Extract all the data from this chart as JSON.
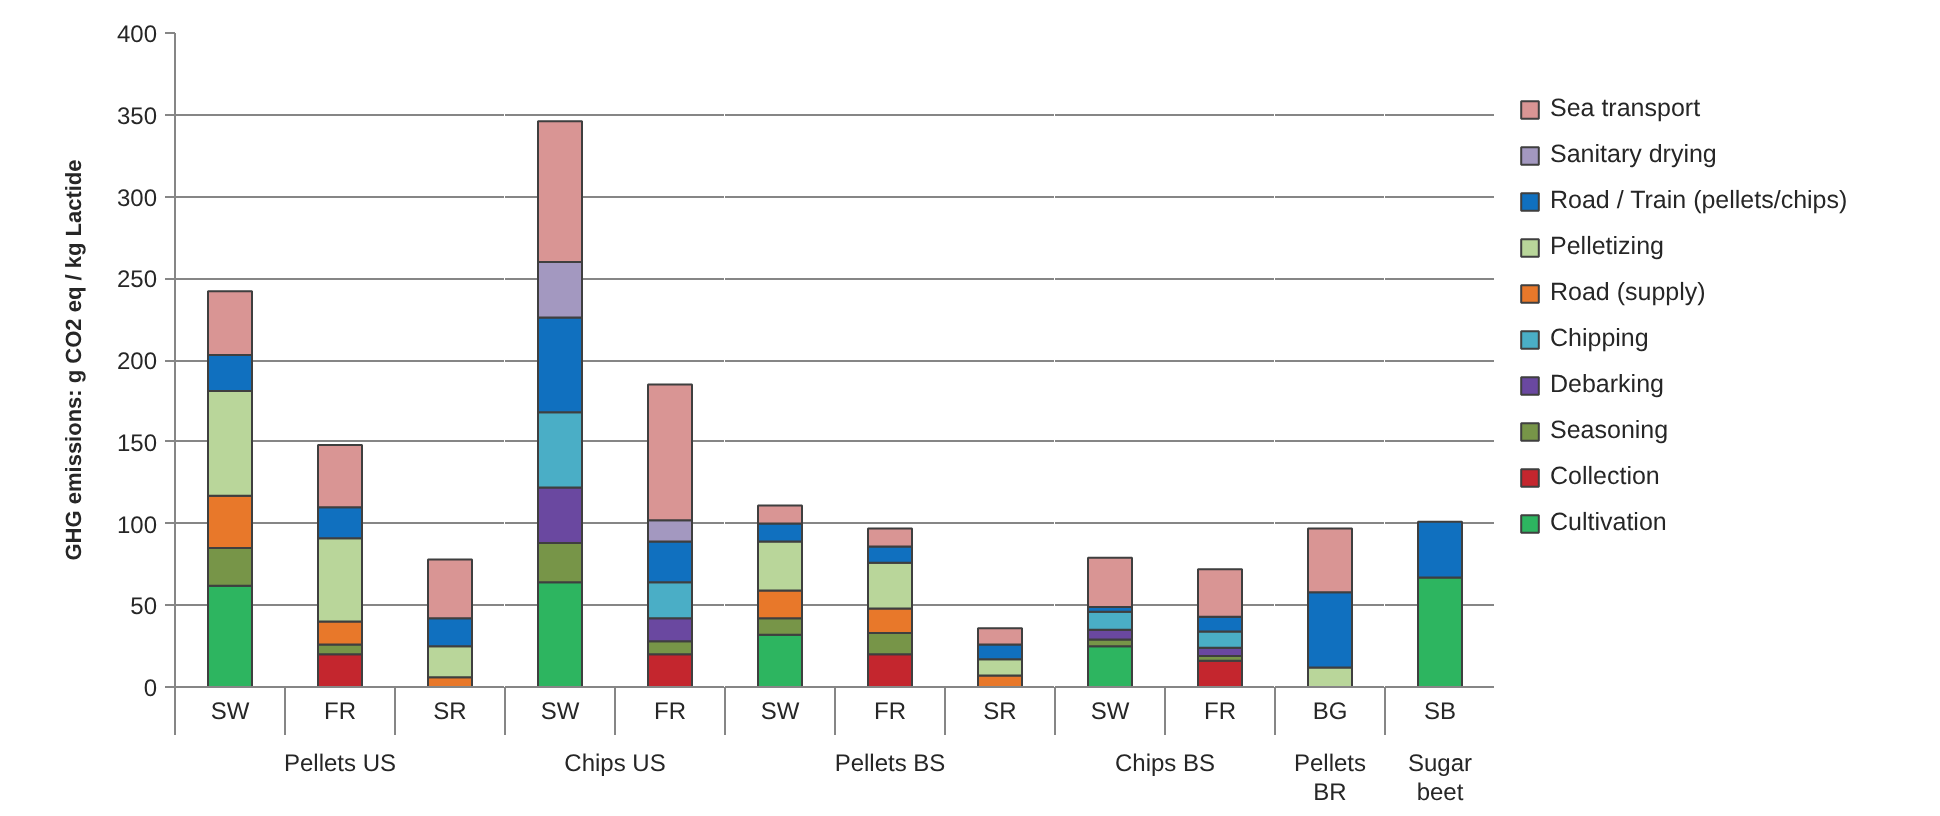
{
  "chart_data": [
    {
      "type": "bar",
      "stacked": true,
      "xlabel": "Pellets US",
      "ylabel": "GHG emissions: g CO2 eq / kg Lactide",
      "categories": [
        "SW",
        "FR",
        "SR"
      ],
      "ylim": [
        0,
        400
      ],
      "yticks": [
        0,
        50,
        100,
        150,
        200,
        250,
        300,
        350,
        400
      ],
      "grid": "y",
      "series": [
        {
          "color": "#2db560",
          "values": [
            62,
            null,
            null
          ]
        },
        {
          "color": "#c4262e",
          "values": [
            null,
            20,
            null
          ]
        },
        {
          "color": "#779548",
          "values": [
            23,
            6,
            null
          ]
        },
        {
          "color": "#e8782a",
          "values": [
            32,
            14,
            6
          ]
        },
        {
          "color": "#b9d69a",
          "values": [
            64,
            51,
            19
          ]
        },
        {
          "color": "#1070bf",
          "values": [
            22,
            19,
            17
          ]
        },
        {
          "color": "#d99594",
          "values": [
            39,
            38,
            36
          ]
        }
      ]
    },
    {
      "type": "bar",
      "stacked": true,
      "xlabel": "Chips US",
      "categories": [
        "SW",
        "FR"
      ],
      "ylim": [
        0,
        400
      ],
      "yticks": [
        0,
        50,
        100,
        150,
        200,
        250,
        300,
        350,
        400
      ],
      "grid": "y",
      "tick_labels": "x",
      "series": [
        {
          "color": "#2db560",
          "values": [
            64,
            null
          ]
        },
        {
          "color": "#c4262e",
          "values": [
            null,
            20
          ]
        },
        {
          "color": "#779548",
          "values": [
            24,
            8
          ]
        },
        {
          "color": "#6a48a0",
          "values": [
            34,
            14
          ]
        },
        {
          "color": "#4aaec6",
          "values": [
            46,
            22
          ]
        },
        {
          "color": "#1070bf",
          "values": [
            58,
            25
          ]
        },
        {
          "color": "#a398c0",
          "values": [
            34,
            13
          ]
        },
        {
          "color": "#d99594",
          "values": [
            86,
            83
          ]
        }
      ]
    },
    {
      "type": "bar",
      "stacked": true,
      "xlabel": "Pellets BS",
      "categories": [
        "SW",
        "FR",
        "SR"
      ],
      "ylim": [
        0,
        400
      ],
      "yticks": [
        0,
        50,
        100,
        150,
        200,
        250,
        300,
        350,
        400
      ],
      "grid": "y",
      "tick_labels": "x",
      "series": [
        {
          "color": "#2db560",
          "values": [
            32,
            null,
            null
          ]
        },
        {
          "color": "#c4262e",
          "values": [
            null,
            20,
            null
          ]
        },
        {
          "color": "#779548",
          "values": [
            10,
            13,
            null
          ]
        },
        {
          "color": "#e8782a",
          "values": [
            17,
            15,
            7
          ]
        },
        {
          "color": "#b9d69a",
          "values": [
            30,
            28,
            10
          ]
        },
        {
          "color": "#1070bf",
          "values": [
            11,
            10,
            9
          ]
        },
        {
          "color": "#d99594",
          "values": [
            11,
            11,
            10
          ]
        }
      ]
    },
    {
      "type": "bar",
      "stacked": true,
      "xlabel": "Chips BS",
      "categories": [
        "SW",
        "FR"
      ],
      "ylim": [
        0,
        400
      ],
      "yticks": [
        0,
        50,
        100,
        150,
        200,
        250,
        300,
        350,
        400
      ],
      "grid": "y",
      "tick_labels": "x",
      "series": [
        {
          "color": "#2db560",
          "values": [
            25,
            null
          ]
        },
        {
          "color": "#c4262e",
          "values": [
            null,
            16
          ]
        },
        {
          "color": "#779548",
          "values": [
            4,
            3
          ]
        },
        {
          "color": "#6a48a0",
          "values": [
            6,
            5
          ]
        },
        {
          "color": "#4aaec6",
          "values": [
            11,
            10
          ]
        },
        {
          "color": "#1070bf",
          "values": [
            3,
            9
          ]
        },
        {
          "color": "#d99594",
          "values": [
            30,
            29
          ]
        }
      ]
    },
    {
      "type": "bar",
      "stacked": true,
      "xlabel": "Pellets BR",
      "categories": [
        "BG"
      ],
      "ylim": [
        0,
        400
      ],
      "yticks": [
        0,
        50,
        100,
        150,
        200,
        250,
        300,
        350,
        400
      ],
      "grid": "y",
      "tick_labels": "x",
      "series": [
        {
          "color": "#b9d69a",
          "values": [
            12
          ]
        },
        {
          "color": "#1070bf",
          "values": [
            46
          ]
        },
        {
          "color": "#d99594",
          "values": [
            39
          ]
        }
      ]
    },
    {
      "type": "bar",
      "stacked": true,
      "xlabel": "Sugar beet",
      "categories": [
        "SB"
      ],
      "ylim": [
        0,
        400
      ],
      "yticks": [
        0,
        50,
        100,
        150,
        200,
        250,
        300,
        350,
        400
      ],
      "grid": "y",
      "tick_labels": "x",
      "legend": "right",
      "series": [
        {
          "name": "Cultivation",
          "color": "#2db560",
          "values": [
            67
          ]
        },
        {
          "name": "Collection",
          "color": "#c4262e",
          "values": [
            null
          ]
        },
        {
          "name": "Seasoning",
          "color": "#779548",
          "values": [
            null
          ]
        },
        {
          "name": "Debarking",
          "color": "#6a48a0",
          "values": [
            null
          ]
        },
        {
          "name": "Chipping",
          "color": "#4aaec6",
          "values": [
            null
          ]
        },
        {
          "name": "Road (supply)",
          "color": "#e8782a",
          "values": [
            null
          ]
        },
        {
          "name": "Pelletizing",
          "color": "#b9d69a",
          "values": [
            null
          ]
        },
        {
          "name": "Road / Train (pellets/chips)",
          "color": "#1070bf",
          "values": [
            34
          ]
        },
        {
          "name": "Sanitary drying",
          "color": "#a398c0",
          "values": [
            null
          ]
        },
        {
          "name": "Sea transport",
          "color": "#d99594",
          "values": [
            null
          ]
        }
      ]
    }
  ]
}
